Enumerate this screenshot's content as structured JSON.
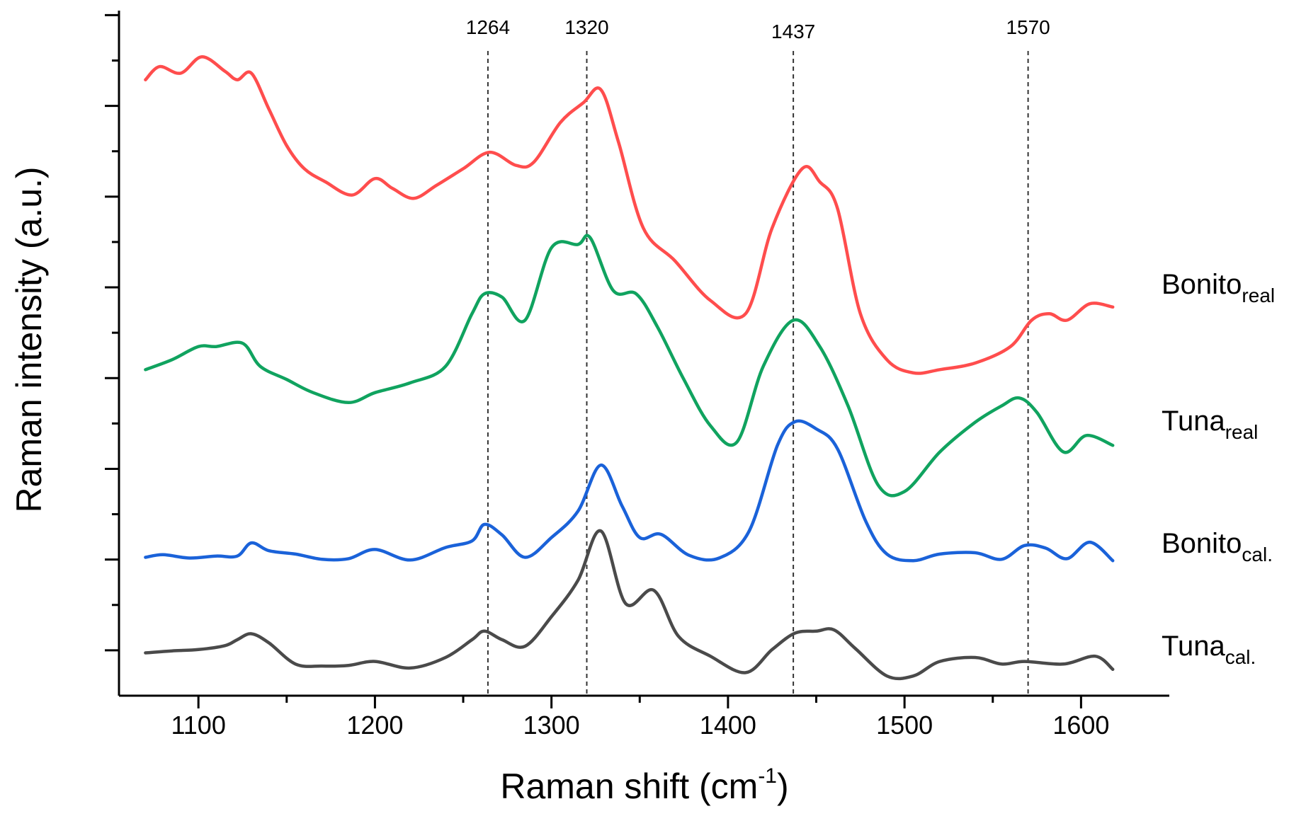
{
  "chart_data": {
    "type": "line",
    "title": "",
    "xlabel": "Raman shift (cm",
    "xlabel_sup": "-1",
    "xlabel_end": ")",
    "ylabel": "Raman intensity (a.u.)",
    "xlim": [
      1055,
      1650
    ],
    "ylim": [
      0,
      1.04
    ],
    "xticks": [
      1100,
      1200,
      1300,
      1400,
      1500,
      1600
    ],
    "ytick_count": 15,
    "peak_lines": [
      1264,
      1320,
      1437,
      1570
    ],
    "peak_labels": [
      "1264",
      "1320",
      "1437",
      "1570"
    ],
    "series": [
      {
        "name": "Bonito",
        "subscript": "real",
        "color": "#ff4d4d",
        "label_y": 0.61,
        "x": [
          1070,
          1078,
          1090,
          1102,
          1115,
          1122,
          1130,
          1140,
          1150,
          1160,
          1172,
          1187,
          1200,
          1210,
          1222,
          1235,
          1250,
          1265,
          1280,
          1290,
          1305,
          1318,
          1328,
          1338,
          1352,
          1370,
          1390,
          1410,
          1425,
          1442,
          1452,
          1462,
          1475,
          1490,
          1505,
          1520,
          1540,
          1560,
          1572,
          1582,
          1592,
          1605,
          1618
        ],
        "y": [
          0.935,
          0.955,
          0.945,
          0.97,
          0.948,
          0.935,
          0.945,
          0.89,
          0.835,
          0.8,
          0.78,
          0.76,
          0.785,
          0.77,
          0.755,
          0.775,
          0.8,
          0.825,
          0.805,
          0.81,
          0.87,
          0.9,
          0.92,
          0.84,
          0.71,
          0.66,
          0.6,
          0.58,
          0.71,
          0.8,
          0.78,
          0.74,
          0.58,
          0.51,
          0.49,
          0.495,
          0.505,
          0.53,
          0.57,
          0.58,
          0.57,
          0.595,
          0.59
        ]
      },
      {
        "name": "Tuna",
        "subscript": "real",
        "color": "#10a35f",
        "label_y": 0.403,
        "x": [
          1070,
          1085,
          1100,
          1110,
          1125,
          1135,
          1150,
          1165,
          1185,
          1200,
          1220,
          1240,
          1255,
          1262,
          1272,
          1285,
          1300,
          1315,
          1322,
          1335,
          1348,
          1360,
          1375,
          1390,
          1405,
          1420,
          1437,
          1452,
          1468,
          1485,
          1500,
          1520,
          1540,
          1555,
          1565,
          1575,
          1590,
          1603,
          1618
        ],
        "y": [
          0.495,
          0.51,
          0.53,
          0.53,
          0.535,
          0.5,
          0.48,
          0.46,
          0.445,
          0.46,
          0.475,
          0.5,
          0.58,
          0.61,
          0.605,
          0.57,
          0.68,
          0.685,
          0.695,
          0.615,
          0.61,
          0.56,
          0.48,
          0.41,
          0.385,
          0.5,
          0.57,
          0.53,
          0.44,
          0.32,
          0.31,
          0.37,
          0.415,
          0.44,
          0.452,
          0.43,
          0.37,
          0.395,
          0.38
        ]
      },
      {
        "name": "Bonito",
        "subscript": "cal.",
        "color": "#1a62d9",
        "label_y": 0.217,
        "x": [
          1070,
          1080,
          1095,
          1110,
          1122,
          1130,
          1140,
          1155,
          1170,
          1185,
          1200,
          1220,
          1240,
          1255,
          1262,
          1272,
          1285,
          1300,
          1315,
          1328,
          1340,
          1350,
          1362,
          1378,
          1395,
          1412,
          1428,
          1438,
          1450,
          1462,
          1478,
          1490,
          1505,
          1520,
          1540,
          1555,
          1568,
          1580,
          1592,
          1605,
          1618
        ],
        "y": [
          0.21,
          0.214,
          0.209,
          0.212,
          0.212,
          0.232,
          0.22,
          0.215,
          0.207,
          0.208,
          0.222,
          0.206,
          0.225,
          0.235,
          0.26,
          0.244,
          0.21,
          0.24,
          0.28,
          0.35,
          0.288,
          0.24,
          0.245,
          0.213,
          0.209,
          0.25,
          0.38,
          0.416,
          0.405,
          0.375,
          0.265,
          0.215,
          0.205,
          0.215,
          0.217,
          0.207,
          0.228,
          0.224,
          0.208,
          0.233,
          0.205
        ]
      },
      {
        "name": "Tuna",
        "subscript": "cal.",
        "color": "#4a4a4a",
        "label_y": 0.061,
        "x": [
          1070,
          1085,
          1100,
          1115,
          1122,
          1130,
          1140,
          1155,
          1170,
          1185,
          1200,
          1220,
          1240,
          1255,
          1262,
          1272,
          1285,
          1300,
          1315,
          1328,
          1342,
          1358,
          1372,
          1390,
          1410,
          1425,
          1438,
          1450,
          1460,
          1472,
          1490,
          1505,
          1520,
          1540,
          1555,
          1568,
          1590,
          1608,
          1618
        ],
        "y": [
          0.065,
          0.068,
          0.07,
          0.076,
          0.085,
          0.094,
          0.08,
          0.048,
          0.045,
          0.046,
          0.052,
          0.042,
          0.058,
          0.085,
          0.098,
          0.085,
          0.075,
          0.12,
          0.175,
          0.25,
          0.14,
          0.16,
          0.09,
          0.06,
          0.035,
          0.07,
          0.095,
          0.098,
          0.1,
          0.072,
          0.03,
          0.03,
          0.052,
          0.058,
          0.048,
          0.052,
          0.048,
          0.06,
          0.04
        ]
      }
    ]
  }
}
